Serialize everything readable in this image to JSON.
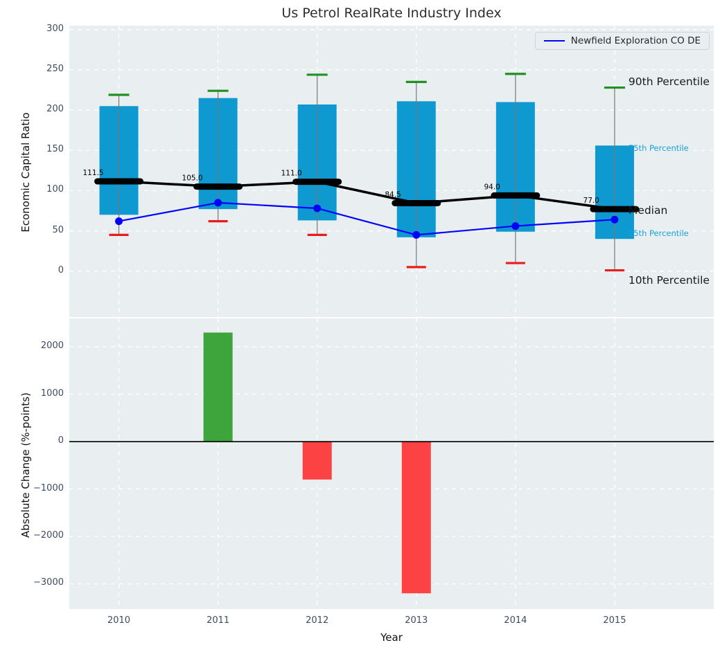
{
  "title": "Us Petrol RealRate Industry Index",
  "legend": {
    "label": "Newfield Exploration CO DE"
  },
  "annotations": {
    "p90": "90th Percentile",
    "p75": "75th Percentile",
    "median": "Median",
    "p25": "25th Percentile",
    "p10": "10th Percentile"
  },
  "colors": {
    "box": "#0e9ad0",
    "whisker": "#777777",
    "cap_high": "#1f9122",
    "cap_low": "#e91c1c",
    "median_bar": "#000000",
    "median_line": "#000000",
    "company_line": "#0000ff",
    "bar_positive": "#3da53c",
    "bar_negative": "#fc4242",
    "axes_bg": "#e9eef1",
    "grid": "#ffffff",
    "tick": "#3c4c60",
    "zero_line": "#000000"
  },
  "chart_data": [
    {
      "type": "boxplot+line",
      "title": "Us Petrol RealRate Industry Index",
      "ylabel": "Economic Capital Ratio",
      "xlim": [
        2009.5,
        2016.0
      ],
      "ylim": [
        -57,
        305
      ],
      "yticks": [
        0,
        50,
        100,
        150,
        200,
        250,
        300
      ],
      "years": [
        2010,
        2011,
        2012,
        2013,
        2014,
        2015
      ],
      "grid": "dashed-white",
      "legend_position": "upper right",
      "boxes": [
        {
          "year": 2010,
          "p10": 45,
          "p25": 70,
          "median": 111.5,
          "p75": 205,
          "p90": 219,
          "label": "111.5"
        },
        {
          "year": 2011,
          "p10": 62,
          "p25": 77,
          "median": 105.0,
          "p75": 215,
          "p90": 224,
          "label": "105.0"
        },
        {
          "year": 2012,
          "p10": 45,
          "p25": 63,
          "median": 111.0,
          "p75": 207,
          "p90": 244,
          "label": "111.0"
        },
        {
          "year": 2013,
          "p10": 5,
          "p25": 42,
          "median": 84.5,
          "p75": 211,
          "p90": 235,
          "label": "84.5"
        },
        {
          "year": 2014,
          "p10": 10,
          "p25": 49,
          "median": 94.0,
          "p75": 210,
          "p90": 245,
          "label": "94.0"
        },
        {
          "year": 2015,
          "p10": 1,
          "p25": 40,
          "median": 77.0,
          "p75": 156,
          "p90": 228,
          "label": "77.0"
        }
      ],
      "series": [
        {
          "name": "Newfield Exploration CO DE",
          "values": [
            62,
            85,
            78,
            45,
            56,
            64
          ]
        }
      ]
    },
    {
      "type": "bar",
      "ylabel": "Absolute Change (%-points)",
      "xlabel": "Year",
      "xlim": [
        2009.5,
        2016.0
      ],
      "ylim": [
        -3533,
        2599
      ],
      "yticks": [
        {
          "v": 2000,
          "label": "2000"
        },
        {
          "v": 1000,
          "label": "1000"
        },
        {
          "v": 0,
          "label": "0"
        },
        {
          "v": -1000,
          "label": "−1000"
        },
        {
          "v": -2000,
          "label": "−2000"
        },
        {
          "v": -3000,
          "label": "−3000"
        }
      ],
      "categories": [
        "2010",
        "2011",
        "2012",
        "2013",
        "2014",
        "2015"
      ],
      "values": [
        0,
        2300,
        -800,
        -3200,
        0,
        0
      ]
    }
  ]
}
